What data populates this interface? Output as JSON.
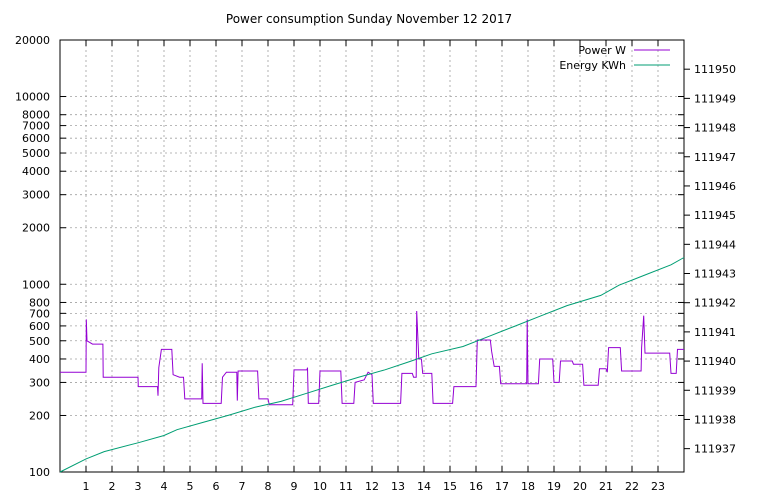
{
  "chart_data": {
    "type": "line",
    "title": "Power consumption Sunday November 12 2017",
    "xlabel": "",
    "ylabel": "",
    "x_range": [
      0,
      24
    ],
    "x_ticks": [
      1,
      2,
      3,
      4,
      5,
      6,
      7,
      8,
      9,
      10,
      11,
      12,
      13,
      14,
      15,
      16,
      17,
      18,
      19,
      20,
      21,
      22,
      23
    ],
    "y_left": {
      "scale": "log",
      "range": [
        100,
        20000
      ],
      "ticks": [
        100,
        200,
        300,
        400,
        500,
        600,
        700,
        800,
        1000,
        2000,
        3000,
        4000,
        5000,
        6000,
        7000,
        8000,
        10000,
        20000
      ]
    },
    "y_right": {
      "range": [
        111936.2,
        111951.0
      ],
      "ticks": [
        111937,
        111938,
        111939,
        111940,
        111941,
        111942,
        111943,
        111944,
        111945,
        111946,
        111947,
        111948,
        111949,
        111950
      ]
    },
    "grid": true,
    "legend_position": "top-right",
    "series": [
      {
        "name": "Power W",
        "color": "#9400d3",
        "axis": "left",
        "points": [
          [
            0,
            340
          ],
          [
            1.0,
            340
          ],
          [
            1.01,
            650
          ],
          [
            1.04,
            500
          ],
          [
            1.25,
            480
          ],
          [
            1.65,
            480
          ],
          [
            1.66,
            320
          ],
          [
            3.0,
            320
          ],
          [
            3.01,
            285
          ],
          [
            3.75,
            285
          ],
          [
            3.77,
            255
          ],
          [
            3.8,
            360
          ],
          [
            3.9,
            450
          ],
          [
            4.3,
            450
          ],
          [
            4.35,
            330
          ],
          [
            4.6,
            320
          ],
          [
            4.75,
            320
          ],
          [
            4.8,
            245
          ],
          [
            5.45,
            245
          ],
          [
            5.47,
            380
          ],
          [
            5.5,
            232
          ],
          [
            6.2,
            232
          ],
          [
            6.25,
            320
          ],
          [
            6.4,
            340
          ],
          [
            6.8,
            340
          ],
          [
            6.82,
            240
          ],
          [
            6.85,
            345
          ],
          [
            7.6,
            345
          ],
          [
            7.65,
            245
          ],
          [
            8.0,
            245
          ],
          [
            8.05,
            228
          ],
          [
            8.95,
            228
          ],
          [
            9.0,
            350
          ],
          [
            9.5,
            350
          ],
          [
            9.52,
            360
          ],
          [
            9.55,
            232
          ],
          [
            9.95,
            232
          ],
          [
            10.0,
            345
          ],
          [
            10.8,
            345
          ],
          [
            10.85,
            232
          ],
          [
            11.3,
            232
          ],
          [
            11.35,
            300
          ],
          [
            11.7,
            310
          ],
          [
            11.85,
            340
          ],
          [
            12.0,
            330
          ],
          [
            12.05,
            232
          ],
          [
            13.1,
            232
          ],
          [
            13.15,
            335
          ],
          [
            13.55,
            335
          ],
          [
            13.6,
            320
          ],
          [
            13.7,
            320
          ],
          [
            13.72,
            720
          ],
          [
            13.8,
            400
          ],
          [
            13.9,
            400
          ],
          [
            13.95,
            335
          ],
          [
            14.3,
            335
          ],
          [
            14.35,
            232
          ],
          [
            15.1,
            232
          ],
          [
            15.15,
            285
          ],
          [
            16.0,
            285
          ],
          [
            16.05,
            505
          ],
          [
            16.55,
            505
          ],
          [
            16.6,
            440
          ],
          [
            16.7,
            365
          ],
          [
            16.9,
            365
          ],
          [
            16.95,
            295
          ],
          [
            17.95,
            295
          ],
          [
            17.97,
            650
          ],
          [
            18.0,
            295
          ],
          [
            18.4,
            295
          ],
          [
            18.45,
            400
          ],
          [
            18.95,
            400
          ],
          [
            19.0,
            300
          ],
          [
            19.2,
            300
          ],
          [
            19.25,
            390
          ],
          [
            19.7,
            390
          ],
          [
            19.75,
            375
          ],
          [
            20.1,
            375
          ],
          [
            20.15,
            290
          ],
          [
            20.7,
            290
          ],
          [
            20.75,
            355
          ],
          [
            21.0,
            355
          ],
          [
            21.05,
            340
          ],
          [
            21.1,
            460
          ],
          [
            21.55,
            460
          ],
          [
            21.6,
            345
          ],
          [
            22.35,
            345
          ],
          [
            22.37,
            460
          ],
          [
            22.45,
            680
          ],
          [
            22.5,
            430
          ],
          [
            23.45,
            430
          ],
          [
            23.5,
            335
          ],
          [
            23.7,
            335
          ],
          [
            23.75,
            450
          ],
          [
            24.0,
            450
          ]
        ]
      },
      {
        "name": "Energy KWh",
        "color": "#009e73",
        "axis": "right",
        "points": [
          [
            0,
            111936.2
          ],
          [
            1,
            111936.65
          ],
          [
            1.7,
            111936.9
          ],
          [
            3,
            111937.2
          ],
          [
            4,
            111937.45
          ],
          [
            4.5,
            111937.65
          ],
          [
            5.5,
            111937.9
          ],
          [
            6.5,
            111938.15
          ],
          [
            7.5,
            111938.42
          ],
          [
            8.5,
            111938.62
          ],
          [
            9.5,
            111938.9
          ],
          [
            10.5,
            111939.18
          ],
          [
            11.5,
            111939.45
          ],
          [
            12.5,
            111939.7
          ],
          [
            13.5,
            111940.0
          ],
          [
            14.3,
            111940.25
          ],
          [
            15.5,
            111940.5
          ],
          [
            16.5,
            111940.85
          ],
          [
            17.5,
            111941.2
          ],
          [
            18.5,
            111941.55
          ],
          [
            19.5,
            111941.9
          ],
          [
            20.8,
            111942.25
          ],
          [
            21.5,
            111942.6
          ],
          [
            22.5,
            111942.95
          ],
          [
            23.5,
            111943.3
          ],
          [
            24,
            111943.55
          ]
        ]
      }
    ]
  }
}
